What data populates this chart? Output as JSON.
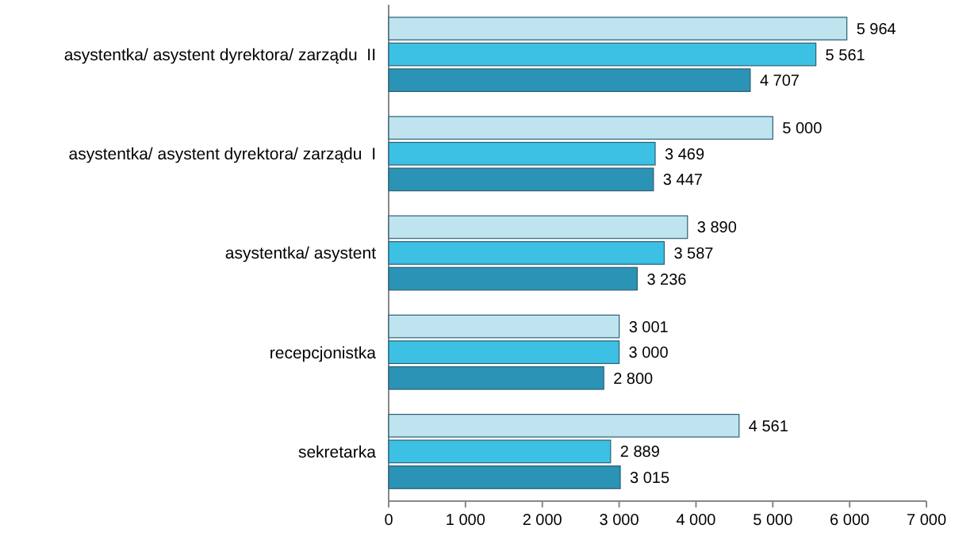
{
  "chart_data": {
    "type": "bar",
    "orientation": "horizontal",
    "categories": [
      "asystentka/ asystent dyrektora/ zarządu  II",
      "asystentka/ asystent dyrektora/ zarządu  I",
      "asystentka/ asystent",
      "recepcjonistka",
      "sekretarka"
    ],
    "series": [
      {
        "color": "#bfe3ef",
        "values": [
          5964,
          5000,
          3890,
          3001,
          4561
        ],
        "value_labels": [
          "5 964",
          "5 000",
          "3 890",
          "3 001",
          "4 561"
        ]
      },
      {
        "color": "#3cc0e4",
        "values": [
          5561,
          3469,
          3587,
          3000,
          2889
        ],
        "value_labels": [
          "5 561",
          "3 469",
          "3 587",
          "3 000",
          "2 889"
        ]
      },
      {
        "color": "#2b93b5",
        "values": [
          4707,
          3447,
          3236,
          2800,
          3015
        ],
        "value_labels": [
          "4 707",
          "3 447",
          "3 236",
          "2 800",
          "3 015"
        ]
      }
    ],
    "xlim": [
      0,
      7000
    ],
    "xticks": [
      0,
      {
        "value": 1000,
        "label": "1 000"
      },
      {
        "value": 2000,
        "label": "2 000"
      },
      {
        "value": 3000,
        "label": "3 000"
      },
      {
        "value": 4000,
        "label": "4 000"
      },
      {
        "value": 5000,
        "label": "5 000"
      },
      {
        "value": 6000,
        "label": "6 000"
      },
      {
        "value": 7000,
        "label": "7 000"
      }
    ],
    "grid": false
  }
}
